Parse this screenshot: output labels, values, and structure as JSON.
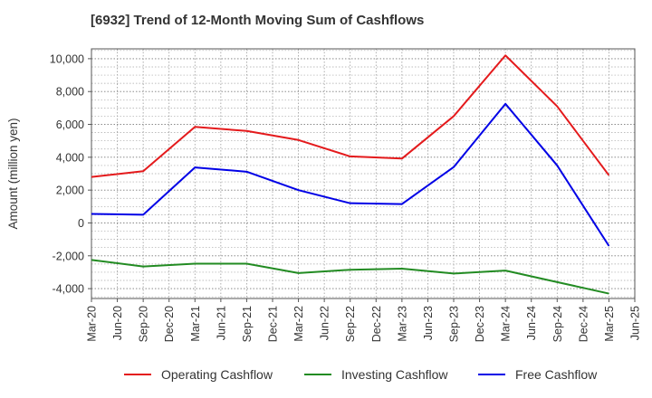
{
  "chart_data": {
    "type": "line",
    "title": "[6932]  Trend of 12-Month Moving Sum of Cashflows",
    "xlabel": "",
    "ylabel": "Amount (million yen)",
    "x": [
      "Mar-20",
      "Jun-20",
      "Sep-20",
      "Dec-20",
      "Mar-21",
      "Jun-21",
      "Sep-21",
      "Dec-21",
      "Mar-22",
      "Jun-22",
      "Sep-22",
      "Dec-22",
      "Mar-23",
      "Jun-23",
      "Sep-23",
      "Dec-23",
      "Mar-24",
      "Jun-24",
      "Sep-24",
      "Dec-24",
      "Mar-25",
      "Jun-25"
    ],
    "ylim": [
      -4600,
      10600
    ],
    "yticks": [
      -4000,
      -2000,
      0,
      2000,
      4000,
      6000,
      8000,
      10000
    ],
    "ytick_labels": [
      "-4,000",
      "-2,000",
      "0",
      "2,000",
      "4,000",
      "6,000",
      "8,000",
      "10,000"
    ],
    "grid": true,
    "legend_position": "bottom",
    "series": [
      {
        "name": "Operating Cashflow",
        "color": "#e41a1c",
        "x": [
          "Mar-20",
          "Sep-20",
          "Mar-21",
          "Sep-21",
          "Mar-22",
          "Sep-22",
          "Mar-23",
          "Sep-23",
          "Mar-24",
          "Sep-24",
          "Mar-25"
        ],
        "values": [
          2800,
          3150,
          5850,
          5600,
          5050,
          4050,
          3920,
          6500,
          10200,
          7100,
          2900
        ]
      },
      {
        "name": "Investing Cashflow",
        "color": "#228b22",
        "x": [
          "Mar-20",
          "Sep-20",
          "Mar-21",
          "Sep-21",
          "Mar-22",
          "Sep-22",
          "Mar-23",
          "Sep-23",
          "Mar-24",
          "Sep-24",
          "Mar-25"
        ],
        "values": [
          -2250,
          -2650,
          -2480,
          -2480,
          -3050,
          -2850,
          -2780,
          -3080,
          -2900,
          -3600,
          -4300
        ]
      },
      {
        "name": "Free Cashflow",
        "color": "#0000e6",
        "x": [
          "Mar-20",
          "Sep-20",
          "Mar-21",
          "Sep-21",
          "Mar-22",
          "Sep-22",
          "Mar-23",
          "Sep-23",
          "Mar-24",
          "Sep-24",
          "Mar-25"
        ],
        "values": [
          550,
          500,
          3380,
          3120,
          2000,
          1200,
          1150,
          3400,
          7250,
          3500,
          -1400
        ]
      }
    ]
  }
}
